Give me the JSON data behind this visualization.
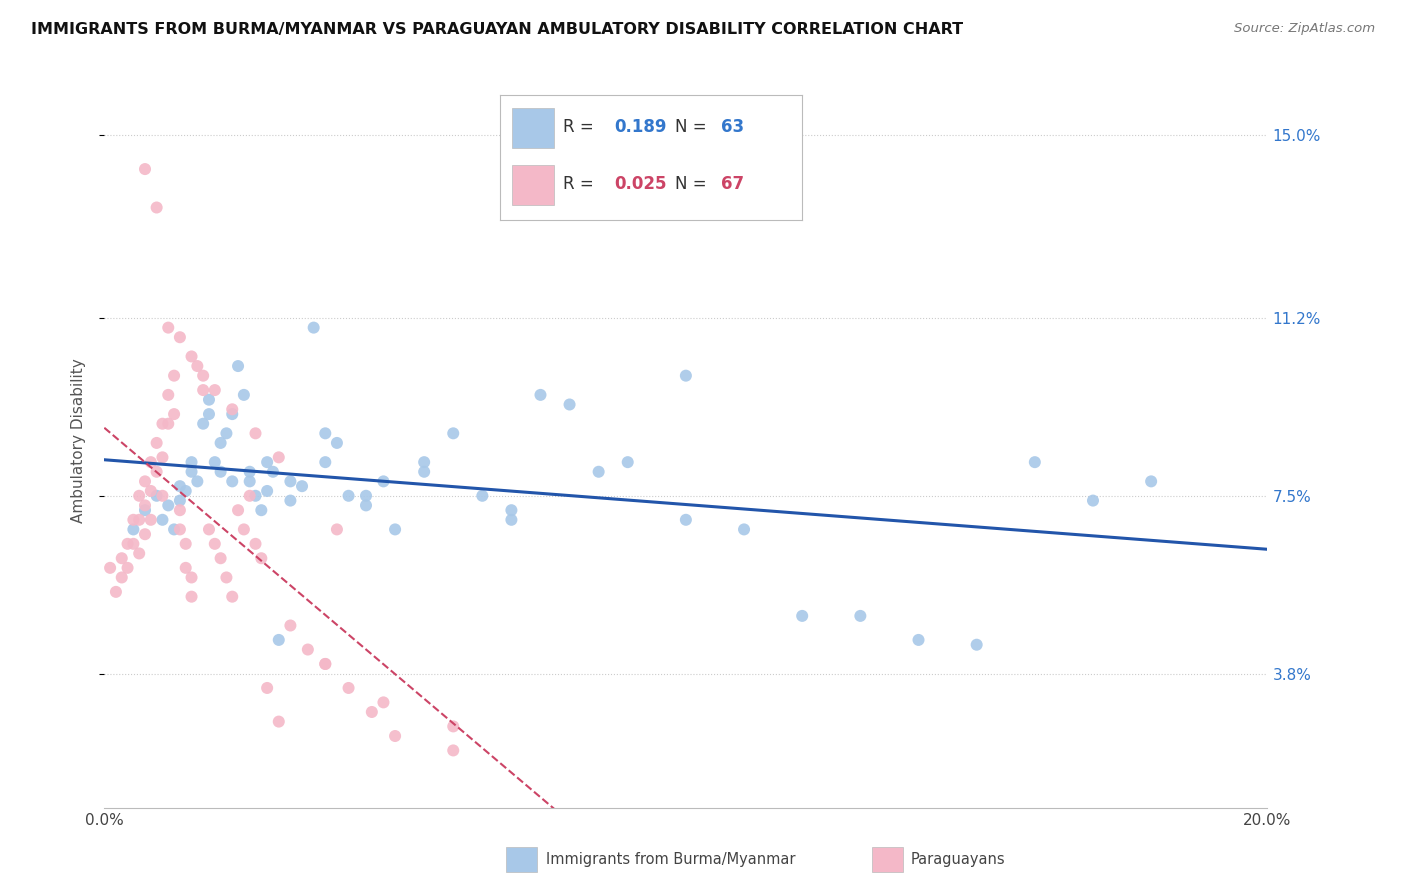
{
  "title": "IMMIGRANTS FROM BURMA/MYANMAR VS PARAGUAYAN AMBULATORY DISABILITY CORRELATION CHART",
  "source": "Source: ZipAtlas.com",
  "ylabel": "Ambulatory Disability",
  "ytick_vals": [
    0.038,
    0.075,
    0.112,
    0.15
  ],
  "ytick_labels": [
    "3.8%",
    "7.5%",
    "11.2%",
    "15.0%"
  ],
  "xmin": 0.0,
  "xmax": 0.2,
  "ymin": 0.01,
  "ymax": 0.163,
  "blue_R": "0.189",
  "blue_N": "63",
  "pink_R": "0.025",
  "pink_N": "67",
  "blue_color": "#a8c8e8",
  "pink_color": "#f4b8c8",
  "blue_line_color": "#2255aa",
  "pink_line_color": "#cc4466",
  "legend_label_blue": "Immigrants from Burma/Myanmar",
  "legend_label_pink": "Paraguayans",
  "blue_x": [
    0.005,
    0.007,
    0.009,
    0.01,
    0.011,
    0.012,
    0.013,
    0.014,
    0.015,
    0.016,
    0.017,
    0.018,
    0.019,
    0.02,
    0.021,
    0.022,
    0.023,
    0.024,
    0.025,
    0.026,
    0.027,
    0.028,
    0.029,
    0.03,
    0.032,
    0.034,
    0.036,
    0.038,
    0.04,
    0.042,
    0.045,
    0.048,
    0.05,
    0.055,
    0.06,
    0.065,
    0.07,
    0.075,
    0.08,
    0.09,
    0.1,
    0.11,
    0.12,
    0.14,
    0.16,
    0.18,
    0.013,
    0.015,
    0.018,
    0.02,
    0.022,
    0.025,
    0.028,
    0.032,
    0.038,
    0.045,
    0.055,
    0.07,
    0.085,
    0.1,
    0.13,
    0.15,
    0.17
  ],
  "blue_y": [
    0.068,
    0.072,
    0.075,
    0.07,
    0.073,
    0.068,
    0.077,
    0.076,
    0.08,
    0.078,
    0.09,
    0.095,
    0.082,
    0.08,
    0.088,
    0.092,
    0.102,
    0.096,
    0.078,
    0.075,
    0.072,
    0.082,
    0.08,
    0.045,
    0.074,
    0.077,
    0.11,
    0.088,
    0.086,
    0.075,
    0.073,
    0.078,
    0.068,
    0.082,
    0.088,
    0.075,
    0.07,
    0.096,
    0.094,
    0.082,
    0.07,
    0.068,
    0.05,
    0.045,
    0.082,
    0.078,
    0.074,
    0.082,
    0.092,
    0.086,
    0.078,
    0.08,
    0.076,
    0.078,
    0.082,
    0.075,
    0.08,
    0.072,
    0.08,
    0.1,
    0.05,
    0.044,
    0.074
  ],
  "pink_x": [
    0.001,
    0.002,
    0.003,
    0.003,
    0.004,
    0.004,
    0.005,
    0.005,
    0.006,
    0.006,
    0.006,
    0.007,
    0.007,
    0.007,
    0.008,
    0.008,
    0.008,
    0.009,
    0.009,
    0.01,
    0.01,
    0.01,
    0.011,
    0.011,
    0.012,
    0.012,
    0.013,
    0.013,
    0.014,
    0.014,
    0.015,
    0.015,
    0.016,
    0.017,
    0.018,
    0.019,
    0.02,
    0.021,
    0.022,
    0.023,
    0.024,
    0.025,
    0.026,
    0.027,
    0.028,
    0.03,
    0.032,
    0.035,
    0.038,
    0.042,
    0.046,
    0.05,
    0.06,
    0.007,
    0.009,
    0.011,
    0.013,
    0.015,
    0.017,
    0.019,
    0.022,
    0.026,
    0.03,
    0.038,
    0.048,
    0.06,
    0.04
  ],
  "pink_y": [
    0.06,
    0.055,
    0.062,
    0.058,
    0.065,
    0.06,
    0.07,
    0.065,
    0.075,
    0.07,
    0.063,
    0.078,
    0.073,
    0.067,
    0.082,
    0.076,
    0.07,
    0.086,
    0.08,
    0.09,
    0.083,
    0.075,
    0.096,
    0.09,
    0.1,
    0.092,
    0.072,
    0.068,
    0.065,
    0.06,
    0.058,
    0.054,
    0.102,
    0.097,
    0.068,
    0.065,
    0.062,
    0.058,
    0.054,
    0.072,
    0.068,
    0.075,
    0.065,
    0.062,
    0.035,
    0.028,
    0.048,
    0.043,
    0.04,
    0.035,
    0.03,
    0.025,
    0.022,
    0.143,
    0.135,
    0.11,
    0.108,
    0.104,
    0.1,
    0.097,
    0.093,
    0.088,
    0.083,
    0.04,
    0.032,
    0.027,
    0.068
  ]
}
